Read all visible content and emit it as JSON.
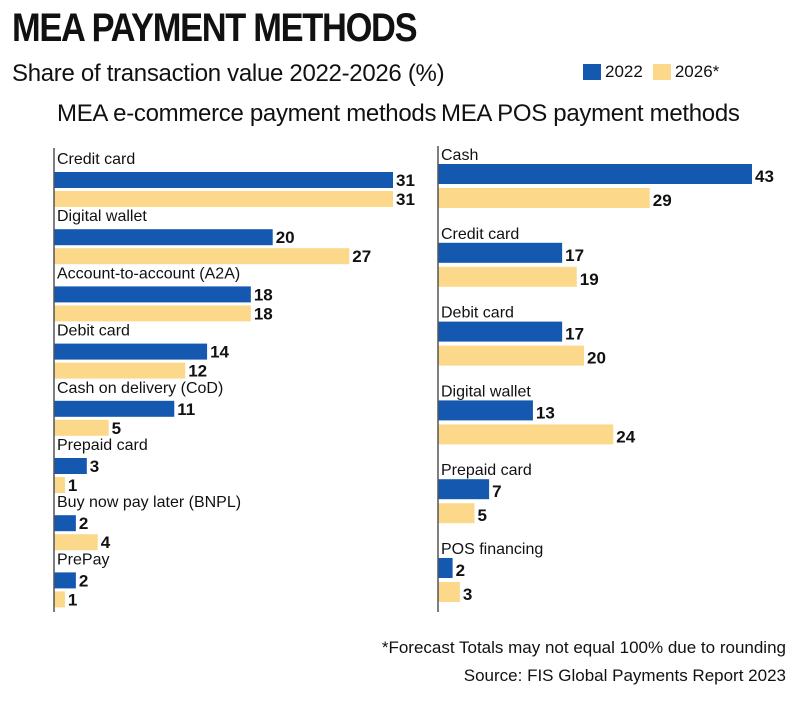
{
  "title": "MEA PAYMENT METHODS",
  "subtitle": "Share of transaction value 2022-2026 (%)",
  "legend": [
    {
      "label": "2022",
      "color": "#1558b0"
    },
    {
      "label": "2026*",
      "color": "#fcd98a"
    }
  ],
  "footnote": "*Forecast   Totals may not equal 100% due to rounding",
  "source": "Source: FIS Global Payments Report 2023",
  "chart_data": [
    {
      "type": "bar",
      "orientation": "horizontal",
      "title": "MEA e-commerce payment methods",
      "categories": [
        "Credit card",
        "Digital wallet",
        "Account-to-account (A2A)",
        "Debit card",
        "Cash on delivery (CoD)",
        "Prepaid card",
        "Buy now pay later (BNPL)",
        "PrePay"
      ],
      "series": [
        {
          "name": "2022",
          "values": [
            31,
            20,
            18,
            14,
            11,
            3,
            2,
            2
          ]
        },
        {
          "name": "2026*",
          "values": [
            31,
            27,
            18,
            12,
            5,
            1,
            4,
            1
          ]
        }
      ],
      "xlim": [
        0,
        31
      ]
    },
    {
      "type": "bar",
      "orientation": "horizontal",
      "title": "MEA POS payment methods",
      "categories": [
        "Cash",
        "Credit card",
        "Debit card",
        "Digital wallet",
        "Prepaid card",
        "POS financing"
      ],
      "series": [
        {
          "name": "2022",
          "values": [
            43,
            17,
            17,
            13,
            7,
            2
          ]
        },
        {
          "name": "2026*",
          "values": [
            29,
            19,
            20,
            24,
            5,
            3
          ]
        }
      ],
      "xlim": [
        0,
        43
      ]
    }
  ]
}
